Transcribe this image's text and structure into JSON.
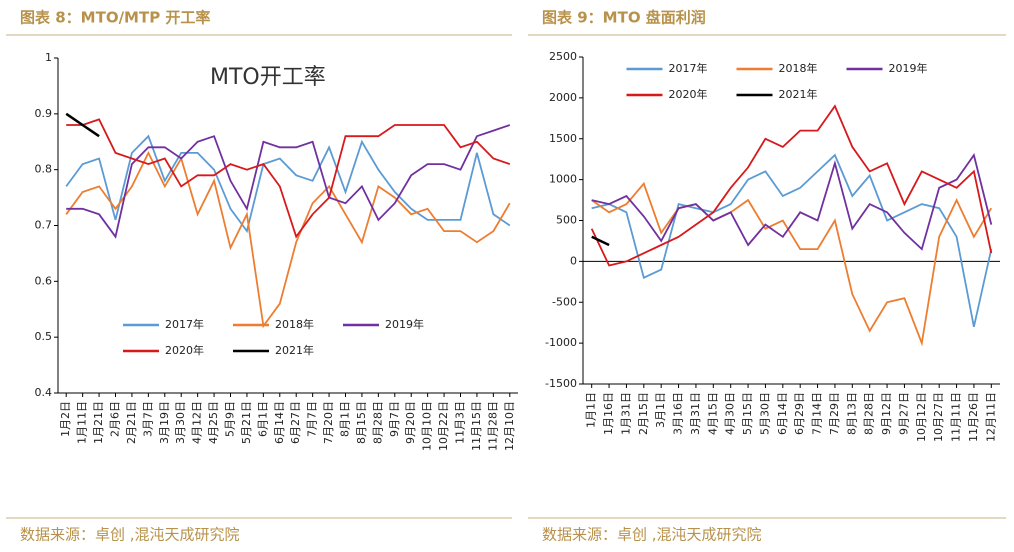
{
  "chart_data": [
    {
      "type": "line",
      "title": "图表 8：MTO/MTP 开工率",
      "subtitle": "MTO开工率",
      "source": "数据来源：卓创 ,混沌天成研究院",
      "categories": [
        "1月2日",
        "1月11日",
        "1月21日",
        "2月6日",
        "2月21日",
        "3月7日",
        "3月19日",
        "3月30日",
        "4月12日",
        "4月25日",
        "5月9日",
        "5月21日",
        "6月1日",
        "6月14日",
        "6月27日",
        "7月7日",
        "7月20日",
        "8月1日",
        "8月15日",
        "8月28日",
        "9月7日",
        "9月20日",
        "10月10日",
        "10月22日",
        "11月3日",
        "11月15日",
        "11月28日",
        "12月10日"
      ],
      "series": [
        {
          "name": "2017年",
          "color": "#5b9bd5",
          "values": [
            0.77,
            0.81,
            0.82,
            0.71,
            0.83,
            0.86,
            0.78,
            0.83,
            0.83,
            0.8,
            0.73,
            0.69,
            0.81,
            0.82,
            0.79,
            0.78,
            0.84,
            0.76,
            0.85,
            0.8,
            0.76,
            0.73,
            0.71,
            0.71,
            0.71,
            0.83,
            0.72,
            0.7
          ]
        },
        {
          "name": "2018年",
          "color": "#ed7d31",
          "values": [
            0.72,
            0.76,
            0.77,
            0.73,
            0.77,
            0.83,
            0.77,
            0.82,
            0.72,
            0.78,
            0.66,
            0.72,
            0.52,
            0.56,
            0.67,
            0.74,
            0.77,
            0.72,
            0.67,
            0.77,
            0.75,
            0.72,
            0.73,
            0.69,
            0.69,
            0.67,
            0.69,
            0.74
          ]
        },
        {
          "name": "2019年",
          "color": "#7030a0",
          "values": [
            0.73,
            0.73,
            0.72,
            0.68,
            0.81,
            0.84,
            0.84,
            0.82,
            0.85,
            0.86,
            0.78,
            0.73,
            0.85,
            0.84,
            0.84,
            0.85,
            0.75,
            0.74,
            0.77,
            0.71,
            0.74,
            0.79,
            0.81,
            0.81,
            0.8,
            0.86,
            0.87,
            0.88
          ]
        },
        {
          "name": "2020年",
          "color": "#d7191c",
          "values": [
            0.88,
            0.88,
            0.89,
            0.83,
            0.82,
            0.81,
            0.82,
            0.77,
            0.79,
            0.79,
            0.81,
            0.8,
            0.81,
            0.77,
            0.68,
            0.72,
            0.75,
            0.86,
            0.86,
            0.86,
            0.88,
            0.88,
            0.88,
            0.88,
            0.84,
            0.85,
            0.82,
            0.81
          ]
        },
        {
          "name": "2021年",
          "color": "#000000",
          "values": [
            0.9,
            0.88,
            0.86,
            null,
            null,
            null,
            null,
            null,
            null,
            null,
            null,
            null,
            null,
            null,
            null,
            null,
            null,
            null,
            null,
            null,
            null,
            null,
            null,
            null,
            null,
            null,
            null,
            null
          ]
        }
      ],
      "ylim": [
        0.4,
        1
      ],
      "yticks": [
        0.4,
        0.5,
        0.6,
        0.7,
        0.8,
        0.9,
        1
      ],
      "legend": "lower center"
    },
    {
      "type": "line",
      "title": "图表 9：MTO 盘面利润",
      "source": "数据来源：卓创 ,混沌天成研究院",
      "categories": [
        "1月1日",
        "1月16日",
        "1月31日",
        "2月15日",
        "3月1日",
        "3月16日",
        "3月31日",
        "4月15日",
        "4月30日",
        "5月15日",
        "5月30日",
        "6月14日",
        "6月29日",
        "7月14日",
        "7月29日",
        "8月13日",
        "8月28日",
        "9月12日",
        "9月27日",
        "10月12日",
        "10月27日",
        "11月11日",
        "11月26日",
        "12月11日"
      ],
      "series": [
        {
          "name": "2017年",
          "color": "#5b9bd5",
          "values": [
            650,
            700,
            600,
            -200,
            -100,
            700,
            650,
            600,
            700,
            1000,
            1100,
            800,
            900,
            1100,
            1300,
            800,
            1050,
            500,
            600,
            700,
            650,
            300,
            -800,
            150
          ]
        },
        {
          "name": "2018年",
          "color": "#ed7d31",
          "values": [
            750,
            600,
            700,
            950,
            350,
            650,
            700,
            500,
            600,
            750,
            400,
            500,
            150,
            150,
            500,
            -400,
            -850,
            -500,
            -450,
            -1000,
            300,
            750,
            300,
            650
          ]
        },
        {
          "name": "2019年",
          "color": "#7030a0",
          "values": [
            750,
            700,
            800,
            550,
            250,
            650,
            700,
            500,
            600,
            200,
            450,
            300,
            600,
            500,
            1200,
            400,
            700,
            600,
            350,
            150,
            900,
            1000,
            1300,
            450
          ]
        },
        {
          "name": "2020年",
          "color": "#d7191c",
          "values": [
            400,
            -50,
            0,
            100,
            200,
            300,
            450,
            600,
            900,
            1150,
            1500,
            1400,
            1600,
            1600,
            1900,
            1400,
            1100,
            1200,
            700,
            1100,
            1000,
            900,
            1100,
            100
          ]
        },
        {
          "name": "2021年",
          "color": "#000000",
          "values": [
            300,
            200,
            null,
            null,
            null,
            null,
            null,
            null,
            null,
            null,
            null,
            null,
            null,
            null,
            null,
            null,
            null,
            null,
            null,
            null,
            null,
            null,
            null,
            null
          ]
        }
      ],
      "ylim": [
        -1500,
        2500
      ],
      "yticks": [
        -1500,
        -1000,
        -500,
        0,
        500,
        1000,
        1500,
        2000,
        2500
      ],
      "legend": "upper center"
    }
  ]
}
